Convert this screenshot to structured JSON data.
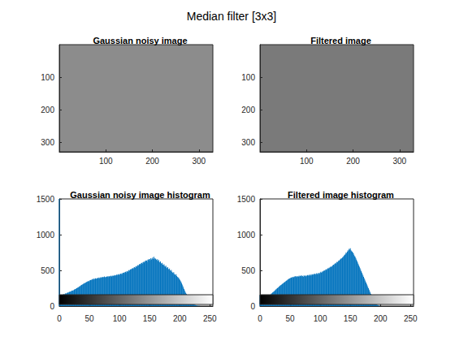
{
  "title": "Median filter [3x3]",
  "chart_data": [
    {
      "type": "image",
      "title": "Gaussian noisy image",
      "xlim": [
        0,
        330
      ],
      "ylim": [
        0,
        330
      ],
      "xticks": [
        100,
        200,
        300
      ],
      "yticks": [
        100,
        200,
        300
      ]
    },
    {
      "type": "image",
      "title": "Filtered image",
      "xlim": [
        0,
        330
      ],
      "ylim": [
        0,
        330
      ],
      "xticks": [
        100,
        200,
        300
      ],
      "yticks": [
        100,
        200,
        300
      ]
    },
    {
      "type": "histogram",
      "title": "Gaussian noisy image histogram",
      "color": "#0072bd",
      "xlim": [
        0,
        255
      ],
      "ylim": [
        0,
        1500
      ],
      "xticks": [
        0,
        50,
        100,
        150,
        200,
        250
      ],
      "yticks": [
        0,
        500,
        1000,
        1500
      ],
      "x": [
        0,
        1,
        2,
        3,
        4,
        5,
        6,
        7,
        8,
        9,
        10,
        11,
        12,
        13,
        14,
        15,
        16,
        17,
        18,
        19,
        20,
        21,
        22,
        23,
        24,
        25,
        26,
        27,
        28,
        29,
        30,
        31,
        32,
        33,
        34,
        35,
        36,
        37,
        38,
        39,
        40,
        41,
        42,
        43,
        44,
        45,
        46,
        47,
        48,
        49,
        50,
        51,
        52,
        53,
        54,
        55,
        56,
        57,
        58,
        59,
        60,
        61,
        62,
        63,
        64,
        65,
        66,
        67,
        68,
        69,
        70,
        71,
        72,
        73,
        74,
        75,
        76,
        77,
        78,
        79,
        80,
        81,
        82,
        83,
        84,
        85,
        86,
        87,
        88,
        89,
        90,
        91,
        92,
        93,
        94,
        95,
        96,
        97,
        98,
        99,
        100,
        101,
        102,
        103,
        104,
        105,
        106,
        107,
        108,
        109,
        110,
        111,
        112,
        113,
        114,
        115,
        116,
        117,
        118,
        119,
        120,
        121,
        122,
        123,
        124,
        125,
        126,
        127,
        128,
        129,
        130,
        131,
        132,
        133,
        134,
        135,
        136,
        137,
        138,
        139,
        140,
        141,
        142,
        143,
        144,
        145,
        146,
        147,
        148,
        149,
        150,
        151,
        152,
        153,
        154,
        155,
        156,
        157,
        158,
        159,
        160,
        161,
        162,
        163,
        164,
        165,
        166,
        167,
        168,
        169,
        170,
        171,
        172,
        173,
        174,
        175,
        176,
        177,
        178,
        179,
        180,
        181,
        182,
        183,
        184,
        185,
        186,
        187,
        188,
        189,
        190,
        191,
        192,
        193,
        194,
        195,
        196,
        197,
        198,
        199,
        200,
        201,
        202,
        203,
        204,
        205,
        206,
        207,
        208,
        209,
        210,
        211,
        212,
        213,
        214,
        215,
        216,
        217,
        218,
        219,
        220,
        221,
        222,
        223,
        224,
        225,
        226,
        227,
        228,
        229,
        230,
        231,
        232,
        233,
        234,
        235,
        236,
        237,
        238,
        239,
        240,
        241,
        242,
        243,
        244,
        245,
        246,
        247,
        248,
        249,
        250,
        251,
        252,
        253,
        254,
        255
      ],
      "values": [
        1500,
        140,
        150,
        145,
        155,
        160,
        150,
        165,
        170,
        160,
        175,
        180,
        170,
        185,
        190,
        185,
        195,
        200,
        205,
        195,
        210,
        215,
        220,
        210,
        225,
        230,
        240,
        235,
        245,
        250,
        255,
        260,
        265,
        270,
        280,
        275,
        290,
        295,
        300,
        305,
        310,
        320,
        315,
        325,
        330,
        335,
        340,
        345,
        350,
        345,
        355,
        360,
        365,
        370,
        360,
        375,
        380,
        370,
        385,
        375,
        390,
        380,
        385,
        390,
        395,
        385,
        400,
        390,
        395,
        405,
        395,
        400,
        410,
        400,
        405,
        415,
        400,
        410,
        405,
        415,
        410,
        420,
        405,
        415,
        420,
        410,
        425,
        415,
        420,
        430,
        420,
        425,
        435,
        425,
        430,
        440,
        430,
        440,
        445,
        435,
        450,
        440,
        455,
        445,
        460,
        450,
        465,
        470,
        460,
        475,
        480,
        470,
        485,
        490,
        480,
        500,
        505,
        495,
        510,
        520,
        510,
        525,
        530,
        520,
        540,
        545,
        535,
        555,
        560,
        550,
        570,
        575,
        565,
        585,
        590,
        580,
        600,
        605,
        595,
        615,
        620,
        610,
        630,
        625,
        640,
        635,
        620,
        650,
        645,
        660,
        640,
        655,
        670,
        650,
        665,
        680,
        660,
        690,
        670,
        655,
        665,
        650,
        640,
        655,
        630,
        645,
        620,
        610,
        625,
        600,
        590,
        605,
        580,
        570,
        585,
        560,
        550,
        565,
        540,
        530,
        545,
        520,
        510,
        525,
        500,
        490,
        505,
        480,
        470,
        460,
        475,
        450,
        440,
        430,
        445,
        420,
        410,
        395,
        400,
        380,
        370,
        355,
        340,
        320,
        300,
        280,
        260,
        240,
        220,
        200,
        185,
        170,
        150,
        135,
        120,
        105,
        95,
        80,
        70,
        60,
        50,
        42,
        35,
        28,
        22,
        17,
        13,
        10,
        8,
        6,
        4,
        3,
        2,
        2,
        1,
        1,
        1,
        0,
        0,
        0,
        0,
        0,
        0,
        0,
        0,
        0,
        0,
        0,
        0,
        0,
        0,
        0,
        0,
        0,
        0,
        0
      ]
    },
    {
      "type": "histogram",
      "title": "Filtered image histogram",
      "color": "#0072bd",
      "xlim": [
        0,
        255
      ],
      "ylim": [
        0,
        1500
      ],
      "xticks": [
        0,
        50,
        100,
        150,
        200,
        250
      ],
      "yticks": [
        0,
        500,
        1000,
        1500
      ],
      "x": [
        0,
        1,
        2,
        3,
        4,
        5,
        6,
        7,
        8,
        9,
        10,
        11,
        12,
        13,
        14,
        15,
        16,
        17,
        18,
        19,
        20,
        21,
        22,
        23,
        24,
        25,
        26,
        27,
        28,
        29,
        30,
        31,
        32,
        33,
        34,
        35,
        36,
        37,
        38,
        39,
        40,
        41,
        42,
        43,
        44,
        45,
        46,
        47,
        48,
        49,
        50,
        51,
        52,
        53,
        54,
        55,
        56,
        57,
        58,
        59,
        60,
        61,
        62,
        63,
        64,
        65,
        66,
        67,
        68,
        69,
        70,
        71,
        72,
        73,
        74,
        75,
        76,
        77,
        78,
        79,
        80,
        81,
        82,
        83,
        84,
        85,
        86,
        87,
        88,
        89,
        90,
        91,
        92,
        93,
        94,
        95,
        96,
        97,
        98,
        99,
        100,
        101,
        102,
        103,
        104,
        105,
        106,
        107,
        108,
        109,
        110,
        111,
        112,
        113,
        114,
        115,
        116,
        117,
        118,
        119,
        120,
        121,
        122,
        123,
        124,
        125,
        126,
        127,
        128,
        129,
        130,
        131,
        132,
        133,
        134,
        135,
        136,
        137,
        138,
        139,
        140,
        141,
        142,
        143,
        144,
        145,
        146,
        147,
        148,
        149,
        150,
        151,
        152,
        153,
        154,
        155,
        156,
        157,
        158,
        159,
        160,
        161,
        162,
        163,
        164,
        165,
        166,
        167,
        168,
        169,
        170,
        171,
        172,
        173,
        174,
        175,
        176,
        177,
        178,
        179,
        180,
        181,
        182,
        183,
        184,
        185,
        186,
        187,
        188,
        189,
        190,
        191,
        192,
        193,
        194,
        195,
        196,
        197,
        198,
        199,
        200,
        201,
        202,
        203,
        204,
        205,
        206,
        207,
        208,
        209,
        210,
        211,
        212,
        213,
        214,
        215,
        216,
        217,
        218,
        219,
        220,
        221,
        222,
        223,
        224,
        225,
        226,
        227,
        228,
        229,
        230,
        231,
        232,
        233,
        234,
        235,
        236,
        237,
        238,
        239,
        240,
        241,
        242,
        243,
        244,
        245,
        246,
        247,
        248,
        249,
        250,
        251,
        252,
        253,
        254,
        255
      ],
      "values": [
        150,
        60,
        65,
        70,
        75,
        80,
        90,
        95,
        100,
        105,
        110,
        120,
        125,
        130,
        140,
        145,
        150,
        160,
        165,
        175,
        180,
        190,
        195,
        205,
        210,
        220,
        230,
        235,
        245,
        250,
        260,
        265,
        275,
        280,
        290,
        295,
        300,
        310,
        315,
        320,
        330,
        335,
        340,
        350,
        355,
        360,
        370,
        375,
        380,
        385,
        390,
        395,
        400,
        395,
        405,
        410,
        400,
        415,
        410,
        420,
        405,
        415,
        420,
        410,
        415,
        425,
        410,
        420,
        430,
        415,
        425,
        420,
        410,
        430,
        420,
        425,
        415,
        430,
        420,
        435,
        425,
        430,
        440,
        425,
        435,
        445,
        430,
        440,
        450,
        435,
        445,
        455,
        440,
        450,
        460,
        445,
        455,
        465,
        450,
        460,
        470,
        480,
        465,
        475,
        490,
        480,
        495,
        500,
        490,
        510,
        505,
        520,
        515,
        530,
        525,
        540,
        535,
        550,
        545,
        560,
        555,
        570,
        580,
        575,
        590,
        600,
        595,
        610,
        620,
        615,
        630,
        640,
        635,
        650,
        660,
        670,
        665,
        680,
        690,
        700,
        710,
        720,
        730,
        750,
        740,
        760,
        780,
        770,
        800,
        790,
        810,
        780,
        770,
        760,
        750,
        740,
        720,
        700,
        690,
        670,
        650,
        630,
        610,
        590,
        570,
        550,
        530,
        510,
        490,
        470,
        450,
        430,
        410,
        390,
        370,
        350,
        330,
        310,
        290,
        270,
        250,
        230,
        210,
        190,
        170,
        150,
        130,
        110,
        95,
        80,
        65,
        50,
        40,
        30,
        22,
        15,
        10,
        6,
        4,
        2,
        1,
        0,
        0,
        0,
        0,
        0,
        0,
        0,
        0,
        0,
        0,
        0,
        0,
        0,
        0,
        0,
        0,
        0,
        0,
        0,
        0,
        0,
        0,
        0,
        0,
        0,
        0,
        0,
        0,
        0,
        0,
        0,
        0,
        0,
        0,
        0,
        0,
        0,
        0,
        0,
        0,
        0,
        0,
        0,
        0,
        0,
        0,
        0,
        0,
        0,
        0,
        0,
        0,
        0,
        0,
        0
      ]
    }
  ]
}
